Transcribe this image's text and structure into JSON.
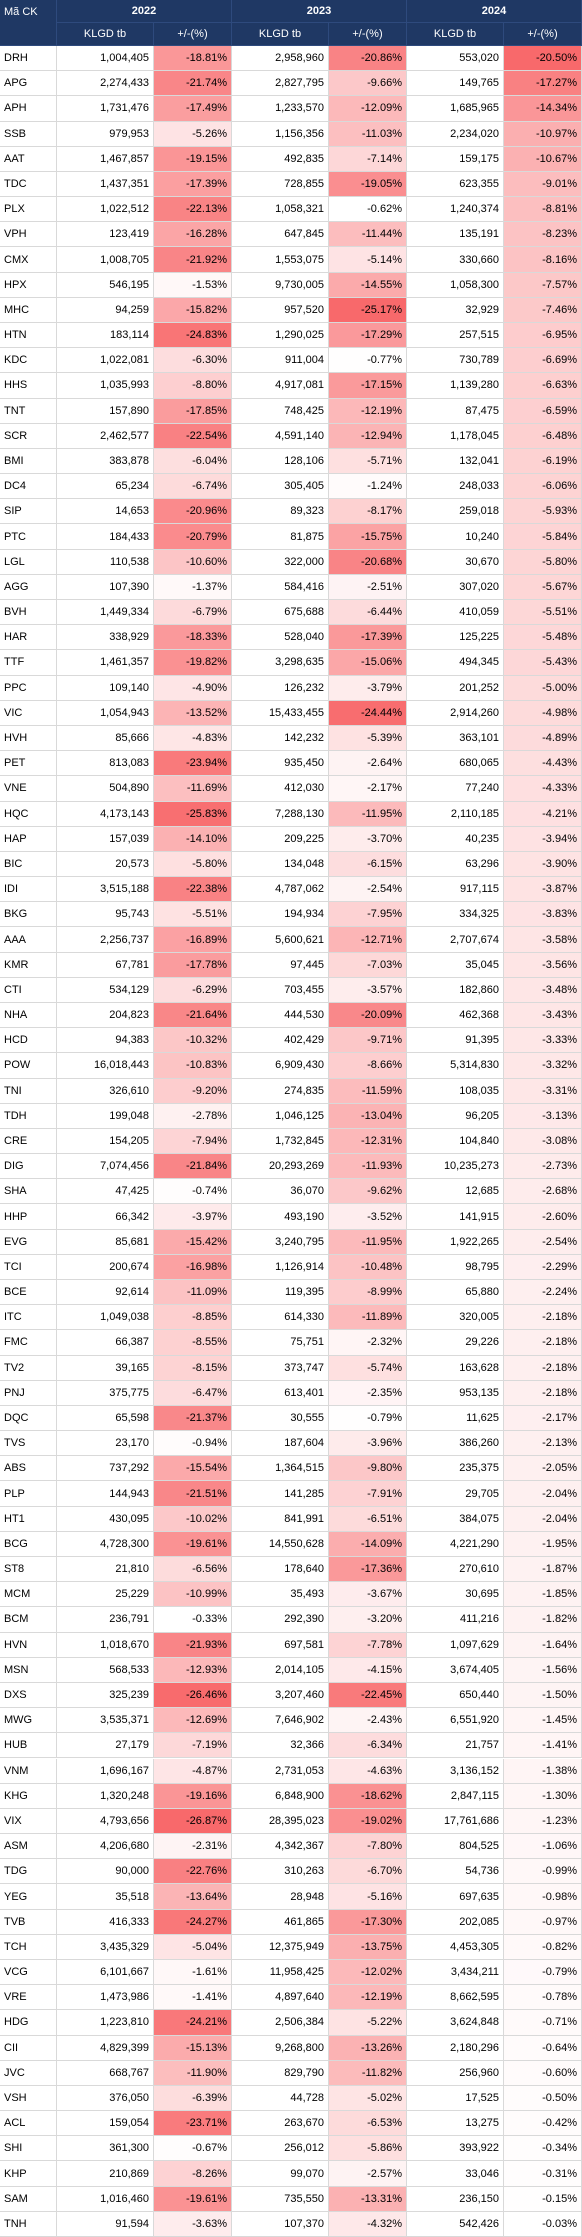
{
  "header": {
    "code_label": "Mã CK",
    "columns": [
      {
        "year": "2022",
        "volume_label": "KLGD tb",
        "change_label": "+/-(%)"
      },
      {
        "year": "2023",
        "volume_label": "KLGD tb",
        "change_label": "+/-(%)"
      },
      {
        "year": "2024",
        "volume_label": "KLGD tb",
        "change_label": "+/-(%)"
      }
    ]
  },
  "color_scale": {
    "low": "#f8696b",
    "high": "#ffffff"
  },
  "table": {
    "rows": [
      [
        "DRH",
        "1,004,405",
        "-18.81%",
        "2,958,960",
        "-20.86%",
        "553,020",
        "-20.50%"
      ],
      [
        "APG",
        "2,274,433",
        "-21.74%",
        "2,827,795",
        "-9.66%",
        "149,765",
        "-17.27%"
      ],
      [
        "APH",
        "1,731,476",
        "-17.49%",
        "1,233,570",
        "-12.09%",
        "1,685,965",
        "-14.34%"
      ],
      [
        "SSB",
        "979,953",
        "-5.26%",
        "1,156,356",
        "-11.03%",
        "2,234,020",
        "-10.97%"
      ],
      [
        "AAT",
        "1,467,857",
        "-19.15%",
        "492,835",
        "-7.14%",
        "159,175",
        "-10.67%"
      ],
      [
        "TDC",
        "1,437,351",
        "-17.39%",
        "728,855",
        "-19.05%",
        "623,355",
        "-9.01%"
      ],
      [
        "PLX",
        "1,022,512",
        "-22.13%",
        "1,058,321",
        "-0.62%",
        "1,240,374",
        "-8.81%"
      ],
      [
        "VPH",
        "123,419",
        "-16.28%",
        "647,845",
        "-11.44%",
        "135,191",
        "-8.23%"
      ],
      [
        "CMX",
        "1,008,705",
        "-21.92%",
        "1,553,075",
        "-5.14%",
        "330,660",
        "-8.16%"
      ],
      [
        "HPX",
        "546,195",
        "-1.53%",
        "9,730,005",
        "-14.55%",
        "1,058,300",
        "-7.57%"
      ],
      [
        "MHC",
        "94,259",
        "-15.82%",
        "957,520",
        "-25.17%",
        "32,929",
        "-7.46%"
      ],
      [
        "HTN",
        "183,114",
        "-24.83%",
        "1,290,025",
        "-17.29%",
        "257,515",
        "-6.95%"
      ],
      [
        "KDC",
        "1,022,081",
        "-6.30%",
        "911,004",
        "-0.77%",
        "730,789",
        "-6.69%"
      ],
      [
        "HHS",
        "1,035,993",
        "-8.80%",
        "4,917,081",
        "-17.15%",
        "1,139,280",
        "-6.63%"
      ],
      [
        "TNT",
        "157,890",
        "-17.85%",
        "748,425",
        "-12.19%",
        "87,475",
        "-6.59%"
      ],
      [
        "SCR",
        "2,462,577",
        "-22.54%",
        "4,591,140",
        "-12.94%",
        "1,178,045",
        "-6.48%"
      ],
      [
        "BMI",
        "383,878",
        "-6.04%",
        "128,106",
        "-5.71%",
        "132,041",
        "-6.19%"
      ],
      [
        "DC4",
        "65,234",
        "-6.74%",
        "305,405",
        "-1.24%",
        "248,033",
        "-6.06%"
      ],
      [
        "SIP",
        "14,653",
        "-20.96%",
        "89,323",
        "-8.17%",
        "259,018",
        "-5.93%"
      ],
      [
        "PTC",
        "184,433",
        "-20.79%",
        "81,875",
        "-15.75%",
        "10,240",
        "-5.84%"
      ],
      [
        "LGL",
        "110,538",
        "-10.60%",
        "322,000",
        "-20.68%",
        "30,670",
        "-5.80%"
      ],
      [
        "AGG",
        "107,390",
        "-1.37%",
        "584,416",
        "-2.51%",
        "307,020",
        "-5.67%"
      ],
      [
        "BVH",
        "1,449,334",
        "-6.79%",
        "675,688",
        "-6.44%",
        "410,059",
        "-5.51%"
      ],
      [
        "HAR",
        "338,929",
        "-18.33%",
        "528,040",
        "-17.39%",
        "125,225",
        "-5.48%"
      ],
      [
        "TTF",
        "1,461,357",
        "-19.82%",
        "3,298,635",
        "-15.06%",
        "494,345",
        "-5.43%"
      ],
      [
        "PPC",
        "109,140",
        "-4.90%",
        "126,232",
        "-3.79%",
        "201,252",
        "-5.00%"
      ],
      [
        "VIC",
        "1,054,943",
        "-13.52%",
        "15,433,455",
        "-24.44%",
        "2,914,260",
        "-4.98%"
      ],
      [
        "HVH",
        "85,666",
        "-4.83%",
        "142,232",
        "-5.39%",
        "363,101",
        "-4.89%"
      ],
      [
        "PET",
        "813,083",
        "-23.94%",
        "935,450",
        "-2.64%",
        "680,065",
        "-4.43%"
      ],
      [
        "VNE",
        "504,890",
        "-11.69%",
        "412,030",
        "-2.17%",
        "77,240",
        "-4.33%"
      ],
      [
        "HQC",
        "4,173,143",
        "-25.83%",
        "7,288,130",
        "-11.95%",
        "2,110,185",
        "-4.21%"
      ],
      [
        "HAP",
        "157,039",
        "-14.10%",
        "209,225",
        "-3.70%",
        "40,235",
        "-3.94%"
      ],
      [
        "BIC",
        "20,573",
        "-5.80%",
        "134,048",
        "-6.15%",
        "63,296",
        "-3.90%"
      ],
      [
        "IDI",
        "3,515,188",
        "-22.38%",
        "4,787,062",
        "-2.54%",
        "917,115",
        "-3.87%"
      ],
      [
        "BKG",
        "95,743",
        "-5.51%",
        "194,934",
        "-7.95%",
        "334,325",
        "-3.83%"
      ],
      [
        "AAA",
        "2,256,737",
        "-16.89%",
        "5,600,621",
        "-12.71%",
        "2,707,674",
        "-3.58%"
      ],
      [
        "KMR",
        "67,781",
        "-17.78%",
        "97,445",
        "-7.03%",
        "35,045",
        "-3.56%"
      ],
      [
        "CTI",
        "534,129",
        "-6.29%",
        "703,455",
        "-3.57%",
        "182,860",
        "-3.48%"
      ],
      [
        "NHA",
        "204,823",
        "-21.64%",
        "444,530",
        "-20.09%",
        "462,368",
        "-3.43%"
      ],
      [
        "HCD",
        "94,383",
        "-10.32%",
        "402,429",
        "-9.71%",
        "91,395",
        "-3.33%"
      ],
      [
        "POW",
        "16,018,443",
        "-10.83%",
        "6,909,430",
        "-8.66%",
        "5,314,830",
        "-3.32%"
      ],
      [
        "TNI",
        "326,610",
        "-9.20%",
        "274,835",
        "-11.59%",
        "108,035",
        "-3.31%"
      ],
      [
        "TDH",
        "199,048",
        "-2.78%",
        "1,046,125",
        "-13.04%",
        "96,205",
        "-3.13%"
      ],
      [
        "CRE",
        "154,205",
        "-7.94%",
        "1,732,845",
        "-12.31%",
        "104,840",
        "-3.08%"
      ],
      [
        "DIG",
        "7,074,456",
        "-21.84%",
        "20,293,269",
        "-11.93%",
        "10,235,273",
        "-2.73%"
      ],
      [
        "SHA",
        "47,425",
        "-0.74%",
        "36,070",
        "-9.62%",
        "12,685",
        "-2.68%"
      ],
      [
        "HHP",
        "66,342",
        "-3.97%",
        "493,190",
        "-3.52%",
        "141,915",
        "-2.60%"
      ],
      [
        "EVG",
        "85,681",
        "-15.42%",
        "3,240,795",
        "-11.95%",
        "1,922,265",
        "-2.54%"
      ],
      [
        "TCI",
        "200,674",
        "-16.98%",
        "1,126,914",
        "-10.48%",
        "98,795",
        "-2.29%"
      ],
      [
        "BCE",
        "92,614",
        "-11.09%",
        "119,395",
        "-8.99%",
        "65,880",
        "-2.24%"
      ],
      [
        "ITC",
        "1,049,038",
        "-8.85%",
        "614,330",
        "-11.89%",
        "320,005",
        "-2.18%"
      ],
      [
        "FMC",
        "66,387",
        "-8.55%",
        "75,751",
        "-2.32%",
        "29,226",
        "-2.18%"
      ],
      [
        "TV2",
        "39,165",
        "-8.15%",
        "373,747",
        "-5.74%",
        "163,628",
        "-2.18%"
      ],
      [
        "PNJ",
        "375,775",
        "-6.47%",
        "613,401",
        "-2.35%",
        "953,135",
        "-2.18%"
      ],
      [
        "DQC",
        "65,598",
        "-21.37%",
        "30,555",
        "-0.79%",
        "11,625",
        "-2.17%"
      ],
      [
        "TVS",
        "23,170",
        "-0.94%",
        "187,604",
        "-3.96%",
        "386,260",
        "-2.13%"
      ],
      [
        "ABS",
        "737,292",
        "-15.54%",
        "1,364,515",
        "-9.80%",
        "235,375",
        "-2.05%"
      ],
      [
        "PLP",
        "144,943",
        "-21.51%",
        "141,285",
        "-7.91%",
        "29,705",
        "-2.04%"
      ],
      [
        "HT1",
        "430,095",
        "-10.02%",
        "841,991",
        "-6.51%",
        "384,075",
        "-2.04%"
      ],
      [
        "BCG",
        "4,728,300",
        "-19.61%",
        "14,550,628",
        "-14.09%",
        "4,221,290",
        "-1.95%"
      ],
      [
        "ST8",
        "21,810",
        "-6.56%",
        "178,640",
        "-17.36%",
        "270,610",
        "-1.87%"
      ],
      [
        "MCM",
        "25,229",
        "-10.99%",
        "35,493",
        "-3.67%",
        "30,695",
        "-1.85%"
      ],
      [
        "BCM",
        "236,791",
        "-0.33%",
        "292,390",
        "-3.20%",
        "411,216",
        "-1.82%"
      ],
      [
        "HVN",
        "1,018,670",
        "-21.93%",
        "697,581",
        "-7.78%",
        "1,097,629",
        "-1.64%"
      ],
      [
        "MSN",
        "568,533",
        "-12.93%",
        "2,014,105",
        "-4.15%",
        "3,674,405",
        "-1.56%"
      ],
      [
        "DXS",
        "325,239",
        "-26.46%",
        "3,207,460",
        "-22.45%",
        "650,440",
        "-1.50%"
      ],
      [
        "MWG",
        "3,535,371",
        "-12.69%",
        "7,646,902",
        "-2.43%",
        "6,551,920",
        "-1.45%"
      ],
      [
        "HUB",
        "27,179",
        "-7.19%",
        "32,366",
        "-6.34%",
        "21,757",
        "-1.41%"
      ],
      [
        "VNM",
        "1,696,167",
        "-4.87%",
        "2,731,053",
        "-4.63%",
        "3,136,152",
        "-1.38%"
      ],
      [
        "KHG",
        "1,320,248",
        "-19.16%",
        "6,848,900",
        "-18.62%",
        "2,847,115",
        "-1.30%"
      ],
      [
        "VIX",
        "4,793,656",
        "-26.87%",
        "28,395,023",
        "-19.02%",
        "17,761,686",
        "-1.23%"
      ],
      [
        "ASM",
        "4,206,680",
        "-2.31%",
        "4,342,367",
        "-7.80%",
        "804,525",
        "-1.06%"
      ],
      [
        "TDG",
        "90,000",
        "-22.76%",
        "310,263",
        "-6.70%",
        "54,736",
        "-0.99%"
      ],
      [
        "YEG",
        "35,518",
        "-13.64%",
        "28,948",
        "-5.16%",
        "697,635",
        "-0.98%"
      ],
      [
        "TVB",
        "416,333",
        "-24.27%",
        "461,865",
        "-17.30%",
        "202,085",
        "-0.97%"
      ],
      [
        "TCH",
        "3,435,329",
        "-5.04%",
        "12,375,949",
        "-13.75%",
        "4,453,305",
        "-0.82%"
      ],
      [
        "VCG",
        "6,101,667",
        "-1.61%",
        "11,958,425",
        "-12.02%",
        "3,434,211",
        "-0.79%"
      ],
      [
        "VRE",
        "1,473,986",
        "-1.41%",
        "4,897,640",
        "-12.19%",
        "8,662,595",
        "-0.78%"
      ],
      [
        "HDG",
        "1,223,810",
        "-24.21%",
        "2,506,384",
        "-5.22%",
        "3,624,848",
        "-0.71%"
      ],
      [
        "CII",
        "4,829,399",
        "-15.13%",
        "9,268,800",
        "-13.26%",
        "2,180,296",
        "-0.64%"
      ],
      [
        "JVC",
        "668,767",
        "-11.90%",
        "829,790",
        "-11.82%",
        "256,960",
        "-0.60%"
      ],
      [
        "VSH",
        "376,050",
        "-6.39%",
        "44,728",
        "-5.02%",
        "17,525",
        "-0.50%"
      ],
      [
        "ACL",
        "159,054",
        "-23.71%",
        "263,670",
        "-6.53%",
        "13,275",
        "-0.42%"
      ],
      [
        "SHI",
        "361,300",
        "-0.67%",
        "256,012",
        "-5.86%",
        "393,922",
        "-0.34%"
      ],
      [
        "KHP",
        "210,869",
        "-8.26%",
        "99,070",
        "-2.57%",
        "33,046",
        "-0.31%"
      ],
      [
        "SAM",
        "1,016,460",
        "-19.61%",
        "735,550",
        "-13.31%",
        "236,150",
        "-0.15%"
      ],
      [
        "TNH",
        "91,594",
        "-3.63%",
        "107,370",
        "-4.32%",
        "542,426",
        "-0.03%"
      ]
    ]
  }
}
